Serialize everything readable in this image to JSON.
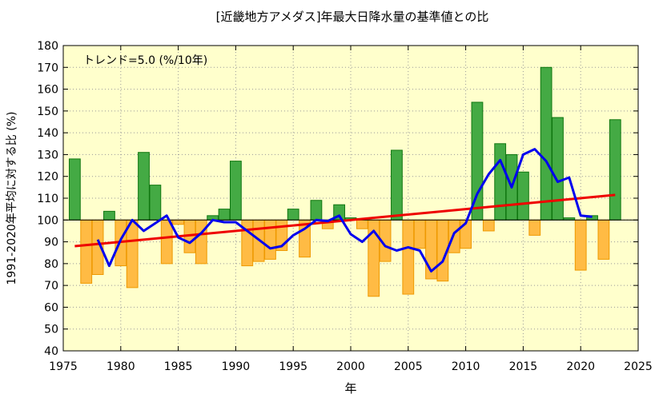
{
  "chart_data": {
    "type": "bar",
    "title": "[近畿地方アメダス]年最大日降水量の基準値との比",
    "xlabel": "年",
    "ylabel": "1991-2020年平均に対する比 (%)",
    "annotation": "トレンド=5.0 (%/10年)",
    "xlim": [
      1975,
      2025
    ],
    "ylim": [
      40,
      180
    ],
    "baseline": 100,
    "x_ticks": [
      1975,
      1980,
      1985,
      1990,
      1995,
      2000,
      2005,
      2010,
      2015,
      2020,
      2025
    ],
    "y_ticks": [
      40,
      50,
      60,
      70,
      80,
      90,
      100,
      110,
      120,
      130,
      140,
      150,
      160,
      170,
      180
    ],
    "grid": true,
    "colors": {
      "plot_background": "#ffffcc",
      "above_baseline": "#44aa44",
      "above_baseline_edge": "#117711",
      "below_baseline": "#ffbb44",
      "below_baseline_edge": "#ee9900",
      "moving_average": "#0000ee",
      "trend": "#ee0000"
    },
    "years": [
      1976,
      1977,
      1978,
      1979,
      1980,
      1981,
      1982,
      1983,
      1984,
      1985,
      1986,
      1987,
      1988,
      1989,
      1990,
      1991,
      1992,
      1993,
      1994,
      1995,
      1996,
      1997,
      1998,
      1999,
      2000,
      2001,
      2002,
      2003,
      2004,
      2005,
      2006,
      2007,
      2008,
      2009,
      2010,
      2011,
      2012,
      2013,
      2014,
      2015,
      2016,
      2017,
      2018,
      2019,
      2020,
      2021,
      2022,
      2023
    ],
    "values": [
      128,
      71,
      75,
      104,
      79,
      69,
      131,
      116,
      80,
      98,
      85,
      80,
      102,
      105,
      127,
      79,
      81,
      82,
      86,
      105,
      83,
      109,
      96,
      107,
      101,
      96,
      65,
      81,
      132,
      66,
      87,
      73,
      72,
      85,
      87,
      154,
      95,
      135,
      130,
      122,
      93,
      170,
      147,
      101,
      77,
      102,
      82,
      146
    ],
    "moving_average": {
      "years": [
        1978,
        1979,
        1980,
        1981,
        1982,
        1983,
        1984,
        1985,
        1986,
        1987,
        1988,
        1989,
        1990,
        1991,
        1992,
        1993,
        1994,
        1995,
        1996,
        1997,
        1998,
        1999,
        2000,
        2001,
        2002,
        2003,
        2004,
        2005,
        2006,
        2007,
        2008,
        2009,
        2010,
        2011,
        2012,
        2013,
        2014,
        2015,
        2016,
        2017,
        2018,
        2019,
        2020,
        2021
      ],
      "values": [
        91,
        79,
        91,
        100,
        95,
        98.5,
        102,
        92,
        89.5,
        94,
        100,
        99,
        99,
        95,
        91,
        87,
        88,
        93,
        96,
        100,
        99.5,
        102,
        93.5,
        90,
        95,
        88,
        86,
        87.5,
        86,
        76.5,
        81,
        94,
        98.5,
        112,
        121,
        127.5,
        115,
        130,
        132.5,
        127,
        117.5,
        119.5,
        102,
        101.5
      ]
    },
    "trend": {
      "x": [
        1976,
        2023
      ],
      "y": [
        88,
        111.5
      ]
    }
  }
}
